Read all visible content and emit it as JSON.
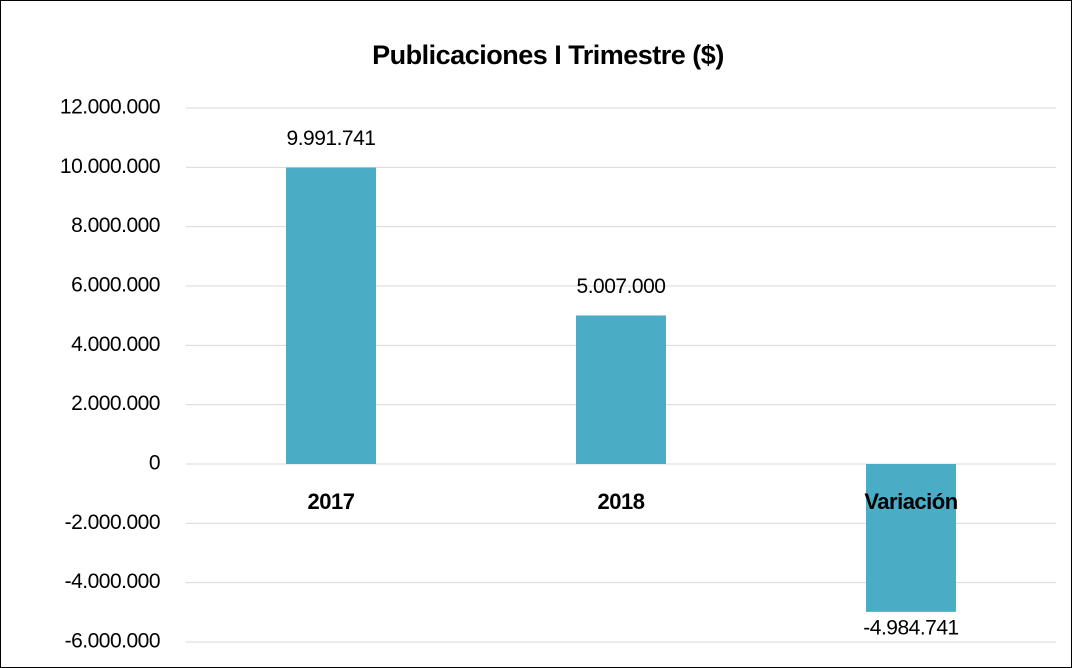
{
  "chart_data": {
    "type": "bar",
    "title": "Publicaciones I Trimestre ($)",
    "categories": [
      "2017",
      "2018",
      "Variación"
    ],
    "values": [
      9991741,
      5007000,
      -4984741
    ],
    "value_labels": [
      "9.991.741",
      "5.007.000",
      "-4.984.741"
    ],
    "color": "#4bacc6",
    "ylim": [
      -6000000,
      12000000
    ],
    "yticks": [
      {
        "value": -6000000,
        "label": "-6.000.000"
      },
      {
        "value": -4000000,
        "label": "-4.000.000"
      },
      {
        "value": -2000000,
        "label": "-2.000.000"
      },
      0,
      {
        "value": 2000000,
        "label": "2.000.000"
      },
      {
        "value": 4000000,
        "label": "4.000.000"
      },
      {
        "value": 6000000,
        "label": "6.000.000"
      },
      {
        "value": 8000000,
        "label": "8.000.000"
      },
      {
        "value": 10000000,
        "label": "10.000.000"
      },
      {
        "value": 12000000,
        "label": "12.000.000"
      }
    ],
    "grid": true
  }
}
